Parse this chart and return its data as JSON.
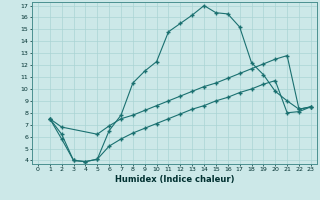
{
  "xlabel": "Humidex (Indice chaleur)",
  "xlim": [
    -0.5,
    23.5
  ],
  "ylim": [
    3.7,
    17.3
  ],
  "yticks": [
    4,
    5,
    6,
    7,
    8,
    9,
    10,
    11,
    12,
    13,
    14,
    15,
    16,
    17
  ],
  "xticks": [
    0,
    1,
    2,
    3,
    4,
    5,
    6,
    7,
    8,
    9,
    10,
    11,
    12,
    13,
    14,
    15,
    16,
    17,
    18,
    19,
    20,
    21,
    22,
    23
  ],
  "bg_color": "#cce8e8",
  "line_color": "#1a7070",
  "grid_color": "#aad4d4",
  "line1_x": [
    1,
    2,
    3,
    4,
    5,
    6,
    7,
    8,
    9,
    10,
    11,
    12,
    13,
    14,
    15,
    16,
    17,
    18,
    19,
    20,
    21,
    22,
    23
  ],
  "line1_y": [
    7.5,
    6.2,
    4.0,
    3.9,
    4.1,
    6.5,
    7.8,
    10.5,
    11.5,
    12.3,
    14.8,
    15.5,
    16.2,
    17.0,
    16.4,
    16.3,
    15.2,
    12.2,
    11.2,
    9.8,
    9.0,
    8.3,
    8.5
  ],
  "line2_x": [
    1,
    2,
    5,
    6,
    7,
    8,
    9,
    10,
    11,
    12,
    13,
    14,
    15,
    16,
    17,
    18,
    19,
    20,
    21,
    22,
    23
  ],
  "line2_y": [
    7.5,
    6.8,
    6.2,
    6.9,
    7.5,
    7.8,
    8.2,
    8.6,
    9.0,
    9.4,
    9.8,
    10.2,
    10.5,
    10.9,
    11.3,
    11.7,
    12.1,
    12.5,
    12.8,
    8.3,
    8.5
  ],
  "line3_x": [
    1,
    2,
    3,
    4,
    5,
    6,
    7,
    8,
    9,
    10,
    11,
    12,
    13,
    14,
    15,
    16,
    17,
    18,
    19,
    20,
    21,
    22,
    23
  ],
  "line3_y": [
    7.5,
    5.8,
    4.0,
    3.9,
    4.1,
    5.2,
    5.8,
    6.3,
    6.7,
    7.1,
    7.5,
    7.9,
    8.3,
    8.6,
    9.0,
    9.3,
    9.7,
    10.0,
    10.4,
    10.7,
    8.0,
    8.1,
    8.5
  ]
}
